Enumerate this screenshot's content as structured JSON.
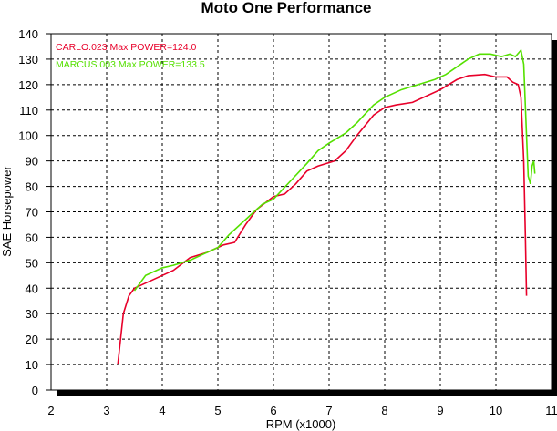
{
  "chart_data": {
    "type": "line",
    "title": "Moto One Performance",
    "xlabel": "RPM (x1000)",
    "ylabel": "SAE Horsepower",
    "xlim": [
      2,
      11
    ],
    "ylim": [
      0,
      140
    ],
    "xticks": [
      2,
      3,
      4,
      5,
      6,
      7,
      8,
      9,
      10,
      11
    ],
    "yticks": [
      0,
      10,
      20,
      30,
      40,
      50,
      60,
      70,
      80,
      90,
      100,
      110,
      120,
      130,
      140
    ],
    "grid": true,
    "legend_position": "top-left",
    "series": [
      {
        "name": "CARLO.023",
        "legend": "Max POWER=124.0",
        "color": "#e8002a",
        "x": [
          3.2,
          3.3,
          3.4,
          3.5,
          3.7,
          4.0,
          4.2,
          4.5,
          4.8,
          5.0,
          5.1,
          5.3,
          5.5,
          5.7,
          6.0,
          6.2,
          6.4,
          6.6,
          6.8,
          7.1,
          7.3,
          7.5,
          7.8,
          8.0,
          8.2,
          8.5,
          8.8,
          9.0,
          9.3,
          9.5,
          9.8,
          10.0,
          10.2,
          10.3,
          10.4,
          10.45,
          10.5,
          10.53,
          10.55
        ],
        "y": [
          10,
          30,
          37,
          40,
          42,
          45,
          47,
          52,
          54,
          56,
          57,
          58,
          65,
          71,
          76,
          77,
          81,
          86,
          88,
          90,
          94,
          100,
          108,
          111,
          112,
          113,
          116,
          118,
          122,
          123.5,
          124,
          123,
          123,
          121,
          120,
          115,
          90,
          60,
          37
        ]
      },
      {
        "name": "MARCUS.003",
        "legend": "Max POWER=133.5",
        "color": "#55e000",
        "x": [
          3.5,
          3.7,
          4.0,
          4.2,
          4.5,
          4.8,
          5.0,
          5.2,
          5.5,
          5.8,
          6.0,
          6.3,
          6.6,
          6.8,
          7.0,
          7.3,
          7.5,
          7.8,
          8.0,
          8.3,
          8.6,
          8.9,
          9.1,
          9.3,
          9.5,
          9.7,
          9.9,
          10.1,
          10.25,
          10.35,
          10.45,
          10.5,
          10.55,
          10.58,
          10.62,
          10.65,
          10.68,
          10.7
        ],
        "y": [
          39,
          45,
          48,
          49,
          51,
          54,
          56,
          61,
          67,
          73,
          75,
          82,
          89,
          94,
          97,
          101,
          105,
          112,
          115,
          118,
          120,
          122,
          124,
          127,
          130,
          132,
          132,
          131,
          132,
          131,
          133.5,
          128,
          100,
          84,
          81,
          88,
          90,
          85
        ]
      }
    ]
  }
}
